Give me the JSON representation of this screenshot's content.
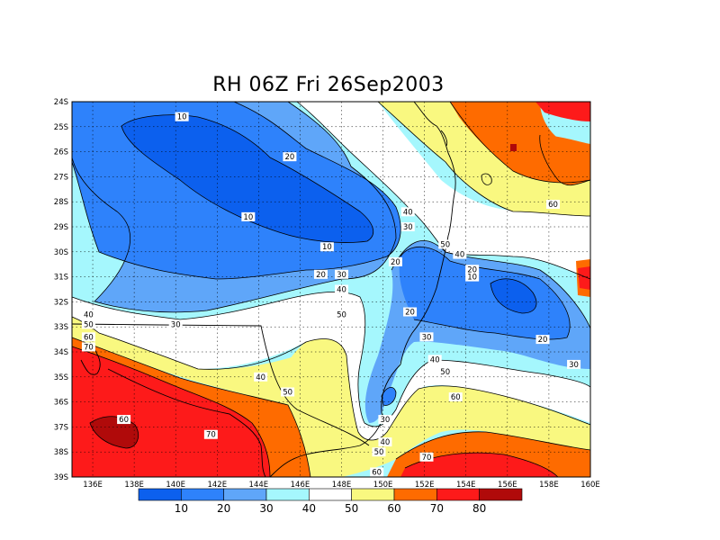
{
  "title": "RH 06Z Fri 26Sep2003",
  "map": {
    "lon_ticks": [
      "136E",
      "138E",
      "140E",
      "142E",
      "144E",
      "146E",
      "148E",
      "150E",
      "152E",
      "154E",
      "156E",
      "158E",
      "160E"
    ],
    "lat_ticks": [
      "24S",
      "25S",
      "26S",
      "27S",
      "28S",
      "29S",
      "30S",
      "31S",
      "32S",
      "33S",
      "34S",
      "35S",
      "36S",
      "37S",
      "38S",
      "39S"
    ],
    "lon_range": [
      135,
      160
    ],
    "lat_range": [
      -24,
      -39
    ]
  },
  "contour_labels": [
    {
      "text": "10",
      "lon": 140.3,
      "lat": -24.6
    },
    {
      "text": "20",
      "lon": 145.5,
      "lat": -26.2
    },
    {
      "text": "10",
      "lon": 143.5,
      "lat": -28.6
    },
    {
      "text": "10",
      "lon": 147.3,
      "lat": -29.8
    },
    {
      "text": "20",
      "lon": 147.0,
      "lat": -30.9
    },
    {
      "text": "30",
      "lon": 148.0,
      "lat": -30.9
    },
    {
      "text": "40",
      "lon": 148.0,
      "lat": -31.5
    },
    {
      "text": "50",
      "lon": 148.0,
      "lat": -32.5
    },
    {
      "text": "40",
      "lon": 151.2,
      "lat": -28.4
    },
    {
      "text": "30",
      "lon": 151.2,
      "lat": -29.0
    },
    {
      "text": "20",
      "lon": 150.6,
      "lat": -30.4
    },
    {
      "text": "50",
      "lon": 153.0,
      "lat": -29.7
    },
    {
      "text": "40",
      "lon": 153.7,
      "lat": -30.1
    },
    {
      "text": "20",
      "lon": 154.3,
      "lat": -30.7
    },
    {
      "text": "10",
      "lon": 154.3,
      "lat": -31.0
    },
    {
      "text": "20",
      "lon": 151.3,
      "lat": -32.4
    },
    {
      "text": "30",
      "lon": 152.1,
      "lat": -33.4
    },
    {
      "text": "20",
      "lon": 157.7,
      "lat": -33.5
    },
    {
      "text": "30",
      "lon": 159.2,
      "lat": -34.5
    },
    {
      "text": "40",
      "lon": 152.5,
      "lat": -34.3
    },
    {
      "text": "50",
      "lon": 153.0,
      "lat": -34.8
    },
    {
      "text": "60",
      "lon": 153.5,
      "lat": -35.8
    },
    {
      "text": "60",
      "lon": 158.2,
      "lat": -28.1
    },
    {
      "text": "40",
      "lon": 135.8,
      "lat": -32.5
    },
    {
      "text": "50",
      "lon": 135.8,
      "lat": -32.9
    },
    {
      "text": "60",
      "lon": 135.8,
      "lat": -33.4
    },
    {
      "text": "70",
      "lon": 135.8,
      "lat": -33.8
    },
    {
      "text": "30",
      "lon": 140.0,
      "lat": -32.9
    },
    {
      "text": "40",
      "lon": 144.1,
      "lat": -35.0
    },
    {
      "text": "50",
      "lon": 145.4,
      "lat": -35.6
    },
    {
      "text": "30",
      "lon": 150.1,
      "lat": -36.7
    },
    {
      "text": "40",
      "lon": 150.1,
      "lat": -37.6
    },
    {
      "text": "50",
      "lon": 149.8,
      "lat": -38.0
    },
    {
      "text": "60",
      "lon": 149.7,
      "lat": -38.8
    },
    {
      "text": "70",
      "lon": 152.1,
      "lat": -38.2
    },
    {
      "text": "60",
      "lon": 137.5,
      "lat": -36.7
    },
    {
      "text": "70",
      "lon": 141.7,
      "lat": -37.3
    }
  ],
  "colorbar": {
    "labels": [
      "10",
      "20",
      "30",
      "40",
      "50",
      "60",
      "70",
      "80"
    ],
    "colors": [
      "#0c60ee",
      "#2e82fb",
      "#5fa6f9",
      "#a5f7fd",
      "#ffffff",
      "#f9f880",
      "#fe6b00",
      "#fd1a1a",
      "#b00a0a"
    ]
  },
  "colors": {
    "lt10": "#0c60ee",
    "r10_20": "#2e82fb",
    "r20_30": "#5fa6f9",
    "r30_40": "#a5f7fd",
    "r40_50": "#ffffff",
    "r50_60": "#f9f880",
    "r60_70": "#fe6b00",
    "r70_80": "#fd1a1a",
    "gt80": "#b00a0a"
  }
}
